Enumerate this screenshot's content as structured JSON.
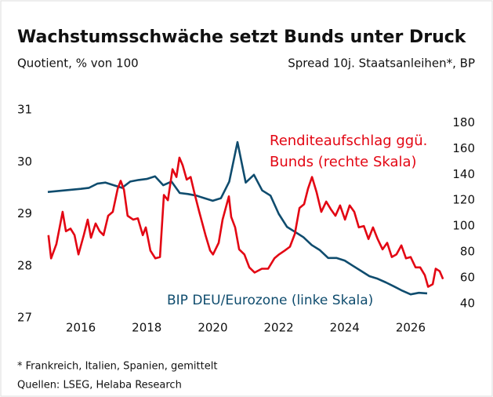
{
  "chart_data": {
    "type": "line",
    "title": "Wachstumsschwäche setzt Bunds unter Druck",
    "y_label": "Quotient, % von 100",
    "y2_label": "Spread 10j. Staatsanleihen*, BP",
    "xlim": [
      2015,
      2027
    ],
    "xticks": [
      2016,
      2018,
      2020,
      2022,
      2024,
      2026
    ],
    "ylim": [
      27,
      31
    ],
    "yticks": [
      27,
      28,
      29,
      30,
      31
    ],
    "y2lim": [
      29,
      190
    ],
    "y2ticks": [
      40,
      60,
      80,
      100,
      120,
      140,
      160,
      180
    ],
    "grid": false,
    "series": [
      {
        "color": "#0f4c6e",
        "axis": "y",
        "x": [
          2015.0,
          2015.5,
          2016.0,
          2016.25,
          2016.5,
          2016.75,
          2017.0,
          2017.25,
          2017.5,
          2017.75,
          2018.0,
          2018.25,
          2018.5,
          2018.75,
          2019.0,
          2019.25,
          2019.5,
          2019.75,
          2020.0,
          2020.25,
          2020.5,
          2020.75,
          2021.0,
          2021.25,
          2021.5,
          2021.75,
          2022.0,
          2022.25,
          2022.5,
          2022.75,
          2023.0,
          2023.25,
          2023.5,
          2023.75,
          2024.0,
          2024.25,
          2024.5,
          2024.75,
          2025.0,
          2025.25,
          2025.5,
          2025.75,
          2026.0,
          2026.25,
          2026.5
        ],
        "values": [
          29.42,
          29.45,
          29.48,
          29.5,
          29.58,
          29.6,
          29.55,
          29.5,
          29.62,
          29.65,
          29.67,
          29.72,
          29.55,
          29.62,
          29.4,
          29.38,
          29.35,
          29.3,
          29.25,
          29.3,
          29.62,
          30.38,
          29.6,
          29.75,
          29.45,
          29.35,
          29.0,
          28.75,
          28.65,
          28.55,
          28.4,
          28.3,
          28.15,
          28.15,
          28.1,
          28.0,
          27.9,
          27.8,
          27.75,
          27.68,
          27.6,
          27.52,
          27.45,
          27.48,
          27.47
        ]
      },
      {
        "color": "#e30613",
        "axis": "y2",
        "x": [
          2015.02,
          2015.1,
          2015.26,
          2015.36,
          2015.45,
          2015.55,
          2015.69,
          2015.81,
          2015.93,
          2016.09,
          2016.21,
          2016.31,
          2016.45,
          2016.57,
          2016.69,
          2016.83,
          2016.97,
          2017.12,
          2017.21,
          2017.31,
          2017.42,
          2017.59,
          2017.73,
          2017.88,
          2017.97,
          2018.11,
          2018.26,
          2018.4,
          2018.52,
          2018.64,
          2018.78,
          2018.9,
          2018.99,
          2019.09,
          2019.21,
          2019.33,
          2019.44,
          2019.59,
          2019.78,
          2019.92,
          2020.01,
          2020.18,
          2020.3,
          2020.49,
          2020.56,
          2020.68,
          2020.8,
          2020.96,
          2021.11,
          2021.27,
          2021.49,
          2021.68,
          2021.87,
          2022.01,
          2022.18,
          2022.34,
          2022.49,
          2022.63,
          2022.77,
          2022.89,
          2023.01,
          2023.15,
          2023.29,
          2023.44,
          2023.58,
          2023.72,
          2023.86,
          2024.01,
          2024.15,
          2024.29,
          2024.43,
          2024.58,
          2024.72,
          2024.86,
          2025.0,
          2025.15,
          2025.29,
          2025.43,
          2025.57,
          2025.72,
          2025.86,
          2026.0,
          2026.15,
          2026.29,
          2026.43,
          2026.53,
          2026.67,
          2026.76,
          2026.88,
          2026.98
        ],
        "values": [
          93,
          75,
          86,
          99,
          111,
          96,
          98,
          93,
          78,
          93,
          105,
          91,
          102,
          96,
          93,
          108,
          111,
          129,
          135,
          128,
          108,
          105,
          106,
          93,
          99,
          81,
          75,
          76,
          124,
          120,
          144,
          138,
          153,
          147,
          136,
          138,
          126,
          111,
          93,
          81,
          78,
          87,
          105,
          123,
          107,
          99,
          82,
          78,
          68,
          64,
          67,
          67,
          75,
          78,
          81,
          84,
          94,
          114,
          117,
          129,
          138,
          126,
          111,
          119,
          113,
          108,
          116,
          105,
          116,
          111,
          99,
          100,
          90,
          99,
          90,
          82,
          87,
          76,
          78,
          85,
          75,
          76,
          68,
          68,
          62,
          53,
          55,
          67,
          65,
          59
        ]
      }
    ],
    "annotations": [
      {
        "text": "Renditeaufschlag ggü.",
        "color": "#e30613"
      },
      {
        "text": "Bunds (rechte Skala)",
        "color": "#e30613"
      },
      {
        "text": "BIP DEU/Eurozone (linke Skala)",
        "color": "#0f4c6e"
      }
    ],
    "footnotes": [
      "* Frankreich, Italien, Spanien, gemittelt",
      "Quellen: LSEG, Helaba Research"
    ]
  }
}
